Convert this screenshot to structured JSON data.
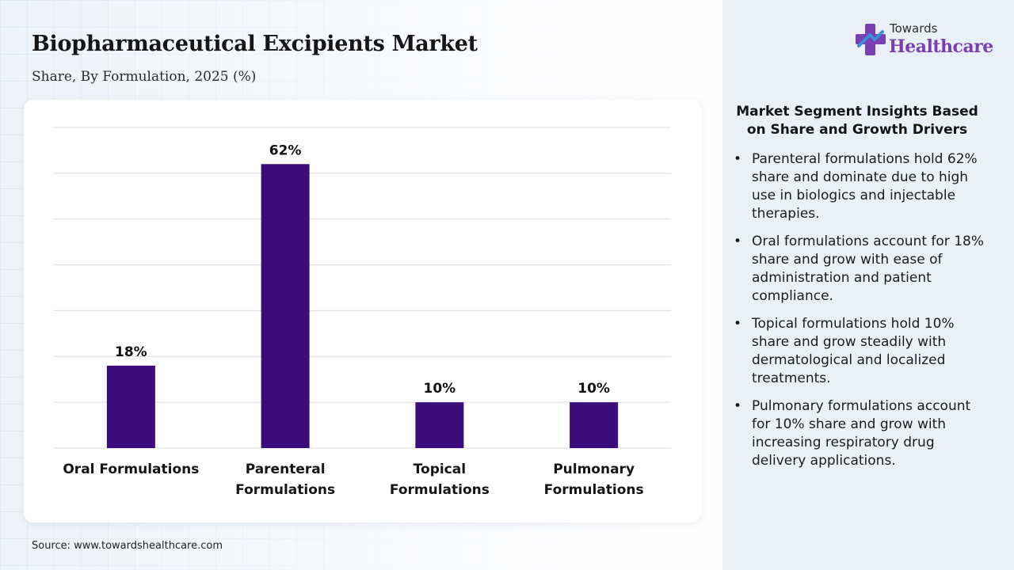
{
  "header": {
    "title": "Biopharmaceutical Excipients Market",
    "subtitle": "Share, By Formulation, 2025 (%)"
  },
  "logo": {
    "top_text": "Towards",
    "main_text": "Healthcare",
    "icon": "cross-plus-icon",
    "colors": {
      "primary": "#7a3fb0",
      "secondary": "#3a8fd6"
    }
  },
  "chart_data": {
    "type": "bar",
    "categories": [
      "Oral Formulations",
      "Parenteral Formulations",
      "Topical Formulations",
      "Pulmonary Formulations"
    ],
    "category_lines": [
      [
        "Oral Formulations"
      ],
      [
        "Parenteral",
        "Formulations"
      ],
      [
        "Topical",
        "Formulations"
      ],
      [
        "Pulmonary",
        "Formulations"
      ]
    ],
    "values": [
      18,
      62,
      10,
      10
    ],
    "data_labels": [
      "18%",
      "62%",
      "10%",
      "10%"
    ],
    "ylim": [
      0,
      70
    ],
    "grid": true,
    "bar_color": "#3b0d7a",
    "title": "",
    "xlabel": "",
    "ylabel": ""
  },
  "insights": {
    "title": "Market Segment Insights Based on Share and Growth Drivers",
    "bullet_char": "•",
    "items": [
      "Parenteral formulations hold 62% share and dominate due to high use in biologics and injectable therapies.",
      "Oral formulations account for 18% share and grow with ease of administration and patient compliance.",
      "Topical formulations hold 10% share and grow steadily with dermatological and localized treatments.",
      "Pulmonary formulations account for 10% share and grow with increasing respiratory drug delivery applications."
    ]
  },
  "footer": {
    "source": "Source: www.towardshealthcare.com"
  }
}
